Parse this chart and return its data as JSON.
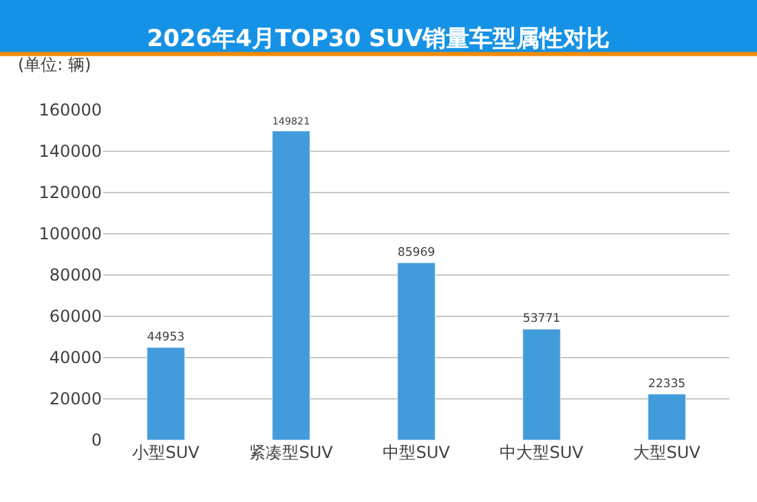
{
  "chart_data": {
    "type": "bar",
    "title": "2026年4月TOP30 SUV销量车型属性对比",
    "ylabel": "(单位: 辆)",
    "categories": [
      "小型SUV",
      "紧凑型SUV",
      "中型SUV",
      "中大型SUV",
      "大型SUV"
    ],
    "values": [
      44953,
      149821,
      85969,
      53771,
      22335
    ],
    "color": "#429bdb",
    "ylim": [
      0,
      160000
    ],
    "yticks": [
      0,
      20000,
      40000,
      60000,
      80000,
      100000,
      120000,
      140000,
      160000
    ],
    "grid": "y",
    "data_labels": true
  }
}
